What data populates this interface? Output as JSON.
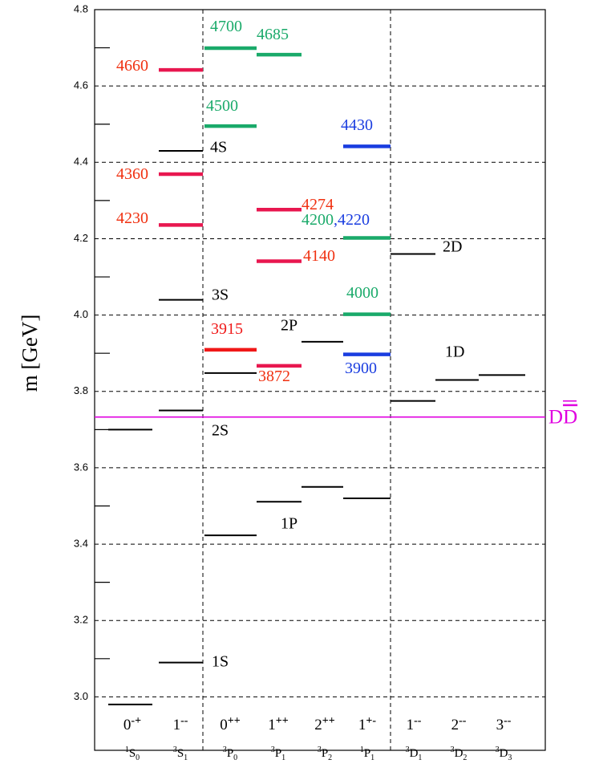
{
  "chart_data": {
    "type": "level",
    "y_label": "m [GeV]",
    "ylim": [
      2.86,
      4.8
    ],
    "yticks": [
      {
        "value": 3,
        "label": "3.0"
      },
      3.2,
      3.4,
      3.6,
      3.8,
      {
        "value": 4,
        "label": "4.0"
      },
      4.2,
      4.4,
      4.6,
      4.8
    ],
    "yminorticks": [
      3.1,
      3.3,
      3.5,
      3.7,
      3.9,
      4.1,
      4.3,
      4.5,
      4.7
    ],
    "grid": true,
    "columns": [
      {
        "jpc": {
          "j": "0",
          "pc": "-+"
        },
        "term": {
          "sup": "1",
          "main": "S",
          "sub": "0"
        }
      },
      {
        "jpc": {
          "j": "1",
          "pc": "--"
        },
        "term": {
          "sup": "3",
          "main": "S",
          "sub": "1"
        }
      },
      {
        "jpc": {
          "j": "0",
          "pc": "++"
        },
        "term": {
          "sup": "3",
          "main": "P",
          "sub": "0"
        }
      },
      {
        "jpc": {
          "j": "1",
          "pc": "++"
        },
        "term": {
          "sup": "3",
          "main": "P",
          "sub": "1"
        }
      },
      {
        "jpc": {
          "j": "2",
          "pc": "++"
        },
        "term": {
          "sup": "3",
          "main": "P",
          "sub": "2"
        }
      },
      {
        "jpc": {
          "j": "1",
          "pc": "+-"
        },
        "term": {
          "sup": "1",
          "main": "P",
          "sub": "1"
        }
      },
      {
        "jpc": {
          "j": "1",
          "pc": "--"
        },
        "term": {
          "sup": "3",
          "main": "D",
          "sub": "1"
        }
      },
      {
        "jpc": {
          "j": "2",
          "pc": "--"
        },
        "term": {
          "sup": "3",
          "main": "D",
          "sub": "2"
        }
      },
      {
        "jpc": {
          "j": "3",
          "pc": "--"
        },
        "term": {
          "sup": "3",
          "main": "D",
          "sub": "3"
        }
      }
    ],
    "levels": [
      {
        "column": 0,
        "value": 2.98,
        "color": "#000000"
      },
      {
        "column": 0,
        "value": 3.7,
        "color": "#000000"
      },
      {
        "column": 1,
        "value": 3.09,
        "color": "#000000"
      },
      {
        "column": 1,
        "value": 3.75,
        "color": "#000000"
      },
      {
        "column": 1,
        "value": 4.04,
        "color": "#000000"
      },
      {
        "column": 1,
        "value": 4.43,
        "color": "#000000"
      },
      {
        "column": 1,
        "value": 4.236,
        "color": "#e8174f",
        "labels": [
          {
            "text": "4230",
            "color": "#f03010"
          }
        ]
      },
      {
        "column": 1,
        "value": 4.369,
        "color": "#e8174f",
        "labels": [
          {
            "text": "4360",
            "color": "#f03010"
          }
        ]
      },
      {
        "column": 1,
        "value": 4.642,
        "color": "#e8174f",
        "labels": [
          {
            "text": "4660",
            "color": "#f03010"
          }
        ]
      },
      {
        "column": 2,
        "value": 3.423,
        "color": "#000000"
      },
      {
        "column": 2,
        "value": 3.848,
        "color": "#000000"
      },
      {
        "column": 2,
        "value": 3.909,
        "color": "#f01818",
        "labels": [
          {
            "text": "3915",
            "color": "#f01818"
          }
        ]
      },
      {
        "column": 2,
        "value": 4.495,
        "color": "#1aaa6a",
        "labels": [
          {
            "text": "4500",
            "color": "#1aaa6a"
          }
        ]
      },
      {
        "column": 2,
        "value": 4.699,
        "color": "#1aaa6a",
        "labels": [
          {
            "text": "4700",
            "color": "#1aaa6a"
          }
        ]
      },
      {
        "column": 3,
        "value": 3.511,
        "color": "#000000"
      },
      {
        "column": 3,
        "value": 3.867,
        "color": "#e8174f",
        "labels": [
          {
            "text": "3872",
            "color": "#f03010"
          }
        ]
      },
      {
        "column": 3,
        "value": 4.141,
        "color": "#e8174f",
        "labels": [
          {
            "text": "4140",
            "color": "#f03010"
          }
        ]
      },
      {
        "column": 3,
        "value": 4.276,
        "color": "#e8174f",
        "labels": [
          {
            "text": "4274",
            "color": "#f03010"
          }
        ]
      },
      {
        "column": 3,
        "value": 4.682,
        "color": "#1aaa6a",
        "labels": [
          {
            "text": "4685",
            "color": "#1aaa6a"
          }
        ]
      },
      {
        "column": 4,
        "value": 3.55,
        "color": "#000000"
      },
      {
        "column": 4,
        "value": 3.93,
        "color": "#000000"
      },
      {
        "column": 5,
        "value": 3.52,
        "color": "#000000"
      },
      {
        "column": 5,
        "value": 3.897,
        "color": "#1a3de0",
        "labels": [
          {
            "text": "3900",
            "color": "#1a3de0"
          }
        ]
      },
      {
        "column": 5,
        "value": 4.002,
        "color": "#1aaa6a",
        "labels": [
          {
            "text": "4000",
            "color": "#1aaa6a"
          }
        ]
      },
      {
        "column": 5,
        "value": 4.202,
        "color": "#1aaa6a",
        "labels": [
          {
            "text": "4200",
            "color": "#1aaa6a"
          },
          {
            "text": ",4220",
            "color": "#1a3de0"
          }
        ]
      },
      {
        "column": 5,
        "value": 4.442,
        "color": "#1a3de0",
        "labels": [
          {
            "text": "4430",
            "color": "#1a3de0"
          }
        ]
      },
      {
        "column": 6,
        "value": 3.775,
        "color": "#000000"
      },
      {
        "column": 6,
        "value": 4.16,
        "color": "#000000"
      },
      {
        "column": 7,
        "value": 3.83,
        "color": "#000000"
      },
      {
        "column": 8,
        "value": 3.843,
        "color": "#000000"
      }
    ],
    "term_labels": [
      "1S",
      "2S",
      "3S",
      "4S",
      "1P",
      "2P",
      "1D",
      "2D"
    ],
    "threshold": {
      "value": 3.733,
      "color": "#e000e0",
      "label": "D",
      "label_bar": "D"
    }
  }
}
